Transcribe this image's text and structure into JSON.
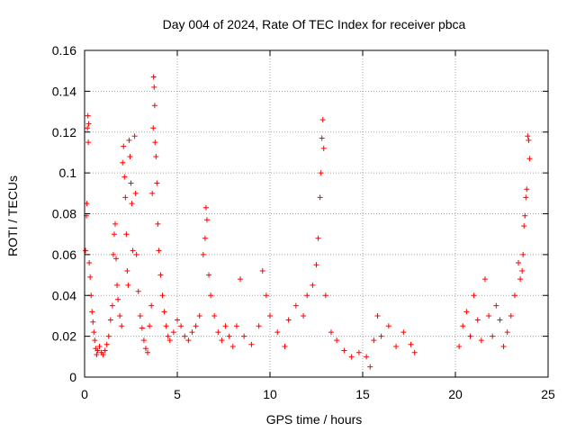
{
  "chart_data": {
    "type": "scatter",
    "title": "Day 004 of 2024, Rate Of TEC Index for receiver pbca",
    "xlabel": "GPS time / hours",
    "ylabel": "ROTI / TECUs",
    "xlim": [
      0,
      25
    ],
    "ylim": [
      0,
      0.16
    ],
    "xticks": [
      "0",
      "5",
      "10",
      "15",
      "20",
      "25"
    ],
    "yticks": [
      "0",
      "0.02",
      "0.04",
      "0.06",
      "0.08",
      "0.1",
      "0.12",
      "0.14",
      "0.16"
    ],
    "grid": true,
    "marker": "+",
    "color": "#ff0000",
    "points": [
      [
        0.05,
        0.062
      ],
      [
        0.1,
        0.079
      ],
      [
        0.12,
        0.085
      ],
      [
        0.15,
        0.122
      ],
      [
        0.18,
        0.128
      ],
      [
        0.2,
        0.115
      ],
      [
        0.22,
        0.124
      ],
      [
        0.25,
        0.056
      ],
      [
        0.3,
        0.049
      ],
      [
        0.35,
        0.04
      ],
      [
        0.4,
        0.032
      ],
      [
        0.45,
        0.027
      ],
      [
        0.5,
        0.022
      ],
      [
        0.55,
        0.018
      ],
      [
        0.6,
        0.014
      ],
      [
        0.65,
        0.011
      ],
      [
        0.7,
        0.013
      ],
      [
        0.8,
        0.015
      ],
      [
        0.9,
        0.012
      ],
      [
        1.0,
        0.011
      ],
      [
        1.1,
        0.013
      ],
      [
        1.2,
        0.016
      ],
      [
        1.3,
        0.02
      ],
      [
        1.4,
        0.028
      ],
      [
        1.5,
        0.035
      ],
      [
        1.55,
        0.06
      ],
      [
        1.6,
        0.07
      ],
      [
        1.65,
        0.075
      ],
      [
        1.7,
        0.058
      ],
      [
        1.75,
        0.045
      ],
      [
        1.8,
        0.038
      ],
      [
        1.9,
        0.03
      ],
      [
        2.0,
        0.025
      ],
      [
        2.05,
        0.105
      ],
      [
        2.1,
        0.113
      ],
      [
        2.15,
        0.098
      ],
      [
        2.2,
        0.088
      ],
      [
        2.25,
        0.07
      ],
      [
        2.3,
        0.052
      ],
      [
        2.35,
        0.045
      ],
      [
        2.4,
        0.116
      ],
      [
        2.45,
        0.108
      ],
      [
        2.5,
        0.095
      ],
      [
        2.55,
        0.085
      ],
      [
        2.6,
        0.062
      ],
      [
        2.7,
        0.118
      ],
      [
        2.75,
        0.09
      ],
      [
        2.8,
        0.06
      ],
      [
        2.9,
        0.042
      ],
      [
        3.0,
        0.03
      ],
      [
        3.1,
        0.024
      ],
      [
        3.2,
        0.018
      ],
      [
        3.3,
        0.014
      ],
      [
        3.4,
        0.012
      ],
      [
        3.5,
        0.025
      ],
      [
        3.6,
        0.035
      ],
      [
        3.65,
        0.09
      ],
      [
        3.7,
        0.122
      ],
      [
        3.72,
        0.147
      ],
      [
        3.75,
        0.142
      ],
      [
        3.78,
        0.133
      ],
      [
        3.8,
        0.115
      ],
      [
        3.85,
        0.108
      ],
      [
        3.9,
        0.095
      ],
      [
        3.95,
        0.075
      ],
      [
        4.0,
        0.062
      ],
      [
        4.1,
        0.05
      ],
      [
        4.2,
        0.04
      ],
      [
        4.3,
        0.032
      ],
      [
        4.4,
        0.025
      ],
      [
        4.5,
        0.02
      ],
      [
        4.6,
        0.018
      ],
      [
        4.8,
        0.022
      ],
      [
        5.0,
        0.028
      ],
      [
        5.2,
        0.025
      ],
      [
        5.4,
        0.02
      ],
      [
        5.6,
        0.018
      ],
      [
        5.8,
        0.022
      ],
      [
        6.0,
        0.025
      ],
      [
        6.2,
        0.03
      ],
      [
        6.4,
        0.06
      ],
      [
        6.5,
        0.068
      ],
      [
        6.55,
        0.083
      ],
      [
        6.6,
        0.077
      ],
      [
        6.7,
        0.05
      ],
      [
        6.8,
        0.04
      ],
      [
        7.0,
        0.03
      ],
      [
        7.2,
        0.022
      ],
      [
        7.4,
        0.018
      ],
      [
        7.6,
        0.025
      ],
      [
        7.8,
        0.02
      ],
      [
        8.0,
        0.015
      ],
      [
        8.2,
        0.025
      ],
      [
        8.4,
        0.048
      ],
      [
        8.6,
        0.02
      ],
      [
        9.0,
        0.016
      ],
      [
        9.4,
        0.025
      ],
      [
        9.6,
        0.052
      ],
      [
        9.8,
        0.04
      ],
      [
        10.0,
        0.03
      ],
      [
        10.4,
        0.022
      ],
      [
        10.8,
        0.015
      ],
      [
        11.0,
        0.028
      ],
      [
        11.4,
        0.035
      ],
      [
        11.8,
        0.03
      ],
      [
        12.0,
        0.04
      ],
      [
        12.3,
        0.045
      ],
      [
        12.5,
        0.055
      ],
      [
        12.6,
        0.068
      ],
      [
        12.7,
        0.088
      ],
      [
        12.75,
        0.1
      ],
      [
        12.8,
        0.117
      ],
      [
        12.85,
        0.126
      ],
      [
        12.9,
        0.112
      ],
      [
        13.0,
        0.04
      ],
      [
        13.3,
        0.022
      ],
      [
        13.6,
        0.018
      ],
      [
        14.0,
        0.013
      ],
      [
        14.4,
        0.01
      ],
      [
        14.8,
        0.012
      ],
      [
        15.2,
        0.01
      ],
      [
        15.4,
        0.005
      ],
      [
        15.6,
        0.018
      ],
      [
        15.8,
        0.03
      ],
      [
        16.0,
        0.02
      ],
      [
        16.4,
        0.025
      ],
      [
        16.8,
        0.015
      ],
      [
        17.2,
        0.022
      ],
      [
        17.6,
        0.016
      ],
      [
        17.8,
        0.012
      ],
      [
        20.2,
        0.015
      ],
      [
        20.4,
        0.025
      ],
      [
        20.6,
        0.032
      ],
      [
        20.8,
        0.02
      ],
      [
        21.0,
        0.04
      ],
      [
        21.2,
        0.028
      ],
      [
        21.4,
        0.018
      ],
      [
        21.6,
        0.048
      ],
      [
        21.8,
        0.03
      ],
      [
        22.0,
        0.02
      ],
      [
        22.2,
        0.035
      ],
      [
        22.4,
        0.028
      ],
      [
        22.6,
        0.015
      ],
      [
        22.8,
        0.022
      ],
      [
        23.0,
        0.03
      ],
      [
        23.2,
        0.04
      ],
      [
        23.4,
        0.056
      ],
      [
        23.5,
        0.048
      ],
      [
        23.6,
        0.052
      ],
      [
        23.65,
        0.06
      ],
      [
        23.7,
        0.074
      ],
      [
        23.75,
        0.079
      ],
      [
        23.8,
        0.088
      ],
      [
        23.85,
        0.092
      ],
      [
        23.9,
        0.118
      ],
      [
        23.95,
        0.116
      ],
      [
        24.0,
        0.107
      ]
    ]
  }
}
